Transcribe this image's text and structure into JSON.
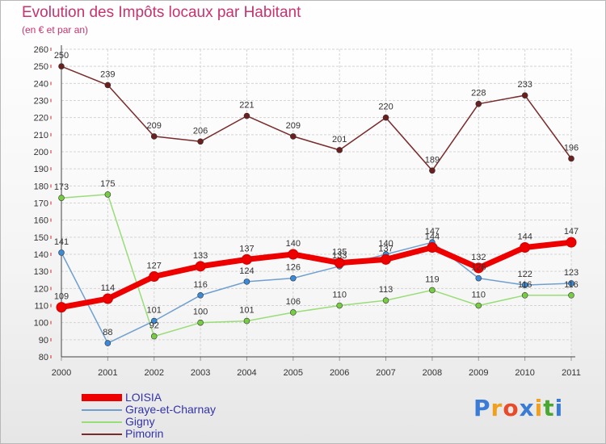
{
  "header": {
    "title": "Evolution des Impôts locaux par Habitant",
    "subtitle": "(en € et par an)"
  },
  "brand": {
    "letters": [
      "P",
      "r",
      "o",
      "x",
      "i",
      "t",
      "i"
    ],
    "colors": [
      "#3a7bd5",
      "#f0a020",
      "#e84a2a",
      "#3a7bd5",
      "#f0a020",
      "#4aa832",
      "#3a7bd5"
    ]
  },
  "chart_data": {
    "type": "line",
    "title": "Evolution des Impôts locaux par Habitant",
    "subtitle": "(en € et par an)",
    "xlabel": "",
    "ylabel": "",
    "x": [
      "2000",
      "2001",
      "2002",
      "2003",
      "2004",
      "2005",
      "2006",
      "2007",
      "2008",
      "2009",
      "2010",
      "2011"
    ],
    "ylim": [
      80,
      260
    ],
    "ystep": 10,
    "yticks": [
      "80",
      "90",
      "100",
      "110",
      "120",
      "130",
      "140",
      "150",
      "160",
      "170",
      "180",
      "190",
      "200",
      "210",
      "220",
      "230",
      "240",
      "250",
      "260"
    ],
    "grid": true,
    "legend_position": "bottom-left",
    "series": [
      {
        "name": "LOISIA",
        "color": "#ee0000",
        "marker": "#ee0000",
        "width": 7,
        "values": [
          109,
          114,
          127,
          133,
          137,
          140,
          135,
          137,
          144,
          132,
          144,
          147
        ]
      },
      {
        "name": "Graye-et-Charnay",
        "color": "#6f9fd0",
        "marker": "#3b8ad8",
        "width": 1.5,
        "values": [
          141,
          88,
          101,
          116,
          124,
          126,
          133,
          140,
          147,
          126,
          122,
          123
        ]
      },
      {
        "name": "Gigny",
        "color": "#99dd77",
        "marker": "#77cc44",
        "width": 1.5,
        "values": [
          173,
          175,
          92,
          100,
          101,
          106,
          110,
          113,
          119,
          110,
          116,
          116
        ]
      },
      {
        "name": "Pimorin",
        "color": "#7a2a2a",
        "marker": "#6b1f1f",
        "width": 1.5,
        "values": [
          250,
          239,
          209,
          206,
          221,
          209,
          201,
          220,
          189,
          228,
          233,
          196
        ]
      }
    ],
    "labels": [
      {
        "series": "Pimorin",
        "text": [
          "250",
          "239",
          "209",
          "206",
          "221",
          "209",
          "201",
          "220",
          "189",
          "228",
          "233",
          "196"
        ]
      },
      {
        "series": "Gigny",
        "text": [
          "173",
          "175",
          "92",
          "100",
          "101",
          "106",
          "110",
          "113",
          "119",
          "110",
          "116",
          "116"
        ]
      },
      {
        "series": "Graye-et-Charnay",
        "text": [
          "141",
          "88",
          "101",
          "116",
          "124",
          "126",
          "133",
          "140",
          "147",
          "126",
          "122",
          "123"
        ]
      },
      {
        "series": "LOISIA",
        "text": [
          "109",
          "114",
          "127",
          "133",
          "137",
          "140",
          "135",
          "137",
          "144",
          "132",
          "144",
          "147"
        ]
      }
    ]
  }
}
